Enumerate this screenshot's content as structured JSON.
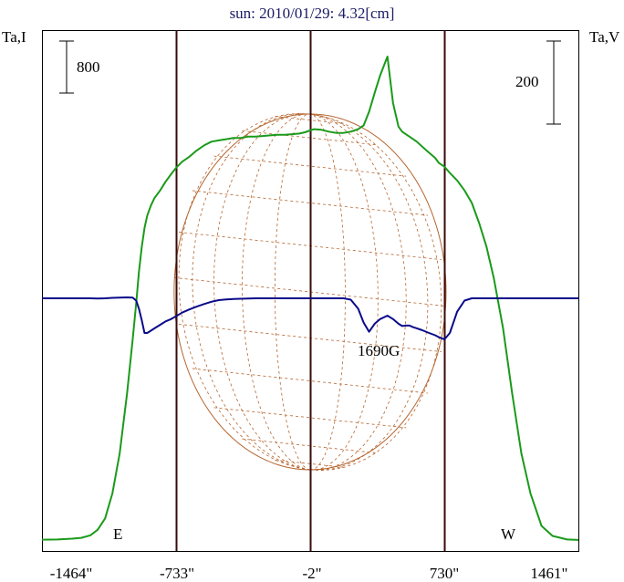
{
  "chart_data": {
    "type": "line",
    "title": "sun: 2010/01/29: 4.32[cm]",
    "left_axis_label": "Ta,I",
    "right_axis_label": "Ta,V",
    "left_scale_label": "800",
    "right_scale_label": "200",
    "x_ticks": [
      "-1464\"",
      "-733\"",
      "-2\"",
      "730\"",
      "1461\""
    ],
    "x_tick_values": [
      -1464,
      -733,
      -2,
      730,
      1461
    ],
    "xlim": [
      -1464,
      1461
    ],
    "limb_markers": [
      {
        "label": "E",
        "x": -733
      },
      {
        "label": "W",
        "x": 730
      }
    ],
    "center_line_x": -2,
    "annotations": [
      "1690G"
    ],
    "grid": false,
    "colors": {
      "intensity": "#1a9a1a",
      "polarization": "#0a0a8a",
      "disk": "#b5652f",
      "markers": "#3a0a0a",
      "title": "#1a1a66"
    },
    "series": [
      {
        "name": "Ta,I",
        "x": [
          -1464,
          -1380,
          -1300,
          -1250,
          -1200,
          -1160,
          -1120,
          -1080,
          -1040,
          -1000,
          -970,
          -950,
          -935,
          -920,
          -905,
          -890,
          -870,
          -850,
          -820,
          -790,
          -760,
          -733,
          -700,
          -660,
          -620,
          -580,
          -540,
          -500,
          -460,
          -420,
          -380,
          -340,
          -300,
          -260,
          -220,
          -180,
          -140,
          -100,
          -60,
          -30,
          -2,
          20,
          60,
          100,
          140,
          180,
          220,
          260,
          290,
          320,
          350,
          380,
          420,
          450,
          480,
          500,
          520,
          540,
          560,
          580,
          610,
          640,
          680,
          700,
          730,
          760,
          800,
          840,
          880,
          920,
          960,
          1000,
          1050,
          1100,
          1150,
          1200,
          1260,
          1320,
          1400,
          1461
        ],
        "values": [
          10,
          12,
          18,
          25,
          45,
          90,
          180,
          380,
          700,
          1180,
          1600,
          1900,
          2150,
          2350,
          2500,
          2600,
          2680,
          2740,
          2800,
          2870,
          2930,
          2980,
          3030,
          3070,
          3120,
          3160,
          3190,
          3200,
          3210,
          3220,
          3220,
          3230,
          3230,
          3235,
          3240,
          3245,
          3245,
          3250,
          3255,
          3265,
          3280,
          3290,
          3285,
          3270,
          3260,
          3260,
          3270,
          3290,
          3320,
          3430,
          3580,
          3720,
          3870,
          3500,
          3310,
          3270,
          3250,
          3230,
          3210,
          3190,
          3150,
          3110,
          3060,
          3020,
          2990,
          2940,
          2880,
          2800,
          2700,
          2540,
          2350,
          2100,
          1700,
          1180,
          700,
          380,
          120,
          40,
          12,
          8
        ]
      },
      {
        "name": "Ta,V",
        "x": [
          -1464,
          -1380,
          -1300,
          -1250,
          -1200,
          -1160,
          -1120,
          -1080,
          -1040,
          -1000,
          -970,
          -950,
          -935,
          -920,
          -905,
          -890,
          -870,
          -850,
          -820,
          -790,
          -760,
          -733,
          -700,
          -660,
          -620,
          -580,
          -540,
          -500,
          -460,
          -420,
          -380,
          -340,
          -300,
          -260,
          -220,
          -180,
          -140,
          -100,
          -60,
          -30,
          -2,
          20,
          60,
          100,
          140,
          180,
          220,
          260,
          290,
          320,
          350,
          380,
          420,
          450,
          480,
          500,
          520,
          540,
          560,
          580,
          610,
          640,
          680,
          700,
          730,
          760,
          800,
          840,
          880,
          920,
          960,
          1000,
          1050,
          1100,
          1150,
          1200,
          1260,
          1320,
          1400,
          1461
        ],
        "values": [
          0,
          0,
          0,
          0,
          0,
          -1,
          0,
          2,
          3,
          4,
          3,
          -10,
          -45,
          -95,
          -150,
          -150,
          -140,
          -130,
          -115,
          -100,
          -90,
          -78,
          -62,
          -48,
          -36,
          -25,
          -15,
          -8,
          -5,
          -3,
          -2,
          -1,
          0,
          0,
          0,
          0,
          0,
          0,
          0,
          0,
          0,
          0,
          0,
          0,
          0,
          0,
          -6,
          -45,
          -105,
          -145,
          -110,
          -90,
          -75,
          -90,
          -110,
          -120,
          -118,
          -118,
          -125,
          -130,
          -138,
          -148,
          -160,
          -168,
          -178,
          -150,
          -58,
          -10,
          0,
          0,
          0,
          0,
          0,
          0,
          0,
          0,
          0,
          0,
          0,
          0
        ]
      }
    ]
  }
}
